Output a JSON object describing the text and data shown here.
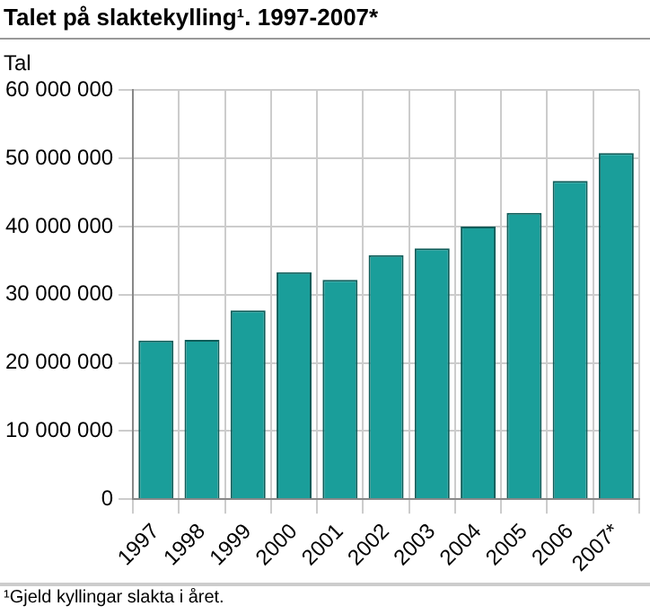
{
  "chart_data": {
    "type": "bar",
    "title": "Talet på slaktekylling¹. 1997-2007*",
    "ylabel": "Tal",
    "categories": [
      "1997",
      "1998",
      "1999",
      "2000",
      "2001",
      "2002",
      "2003",
      "2004",
      "2005",
      "2006",
      "2007*"
    ],
    "values": [
      23300000,
      23400000,
      27700000,
      33300000,
      32200000,
      35800000,
      36800000,
      40000000,
      42000000,
      46700000,
      50800000
    ],
    "color": "#1a9e9a",
    "ylim": [
      0,
      60000000
    ],
    "yticks": [
      0,
      {
        "value": 10000000,
        "label": "10 000 000"
      },
      {
        "value": 20000000,
        "label": "20 000 000"
      },
      {
        "value": 30000000,
        "label": "30 000 000"
      },
      {
        "value": 40000000,
        "label": "40 000 000"
      },
      {
        "value": 50000000,
        "label": "50 000 000"
      },
      {
        "value": 60000000,
        "label": "60 000 000"
      }
    ],
    "grid": true,
    "annotations": [
      "¹Gjeld kyllingar slakta i året."
    ]
  }
}
